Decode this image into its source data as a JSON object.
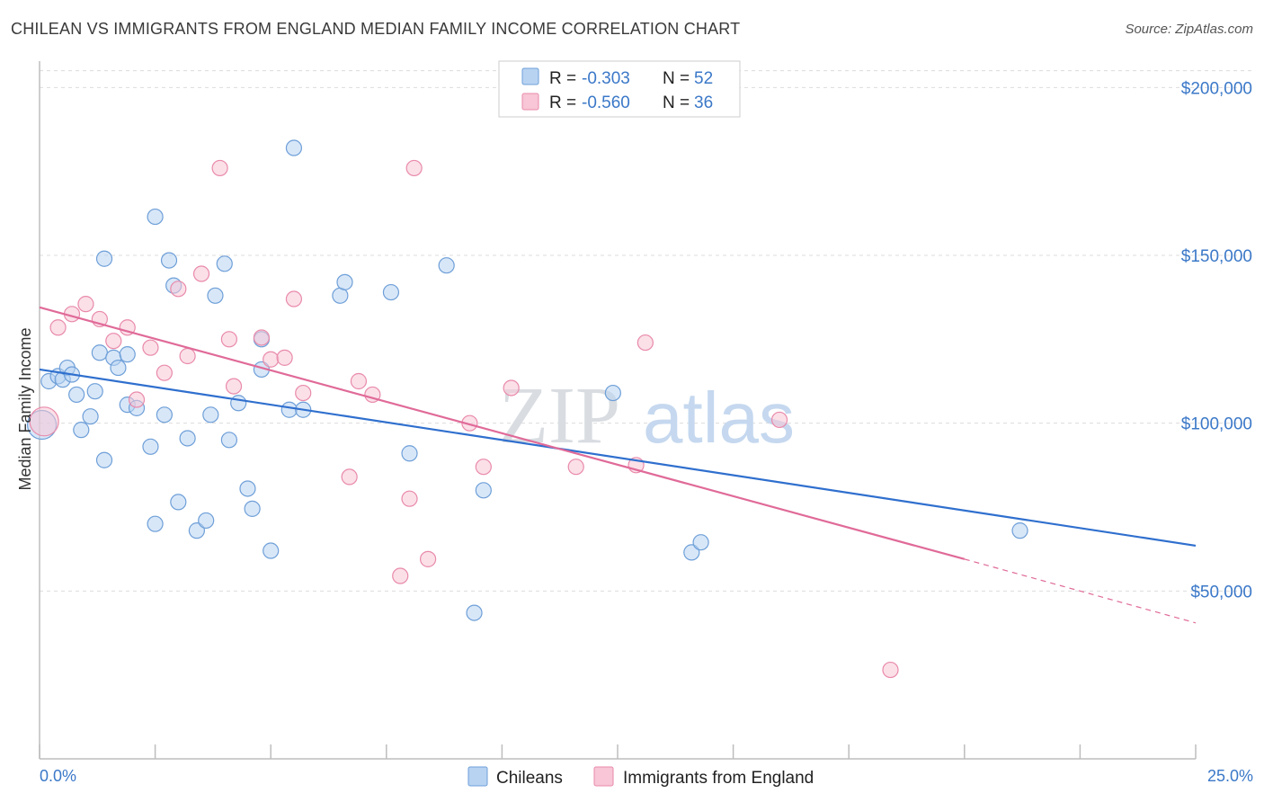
{
  "title": "CHILEAN VS IMMIGRANTS FROM ENGLAND MEDIAN FAMILY INCOME CORRELATION CHART",
  "source": "Source: ZipAtlas.com",
  "watermark": {
    "part1": "ZIP",
    "part2": "atlas"
  },
  "colors": {
    "blue_fill": "#b8d3f2",
    "blue_stroke": "#6e9fd8",
    "blue_line": "#2f6fce",
    "pink_fill": "#f8c6d6",
    "pink_stroke": "#e98aaa",
    "pink_line": "#e06a98",
    "axis_value": "#3b78c8",
    "grid": "#dcdcdc"
  },
  "legend_top": {
    "rows": [
      {
        "r_label": "R = ",
        "r_value": "-0.303",
        "n_label": "N = ",
        "n_value": "52"
      },
      {
        "r_label": "R = ",
        "r_value": "-0.560",
        "n_label": "N = ",
        "n_value": "36"
      }
    ]
  },
  "legend_bottom": [
    "Chileans",
    "Immigrants from England"
  ],
  "chart_data": {
    "type": "scatter",
    "title": "CHILEAN VS IMMIGRANTS FROM ENGLAND MEDIAN FAMILY INCOME CORRELATION CHART",
    "xlabel": "",
    "ylabel": "Median Family Income",
    "xlim": [
      0,
      25
    ],
    "ylim": [
      0,
      210000
    ],
    "x_tick_labels": [
      "0.0%",
      "25.0%"
    ],
    "y_ticks": [
      50000,
      100000,
      150000,
      200000
    ],
    "y_tick_labels": [
      "$50,000",
      "$100,000",
      "$150,000",
      "$200,000"
    ],
    "grid": true,
    "legend_position": "top-center",
    "series": [
      {
        "name": "Chileans",
        "r": -0.303,
        "n": 52,
        "trend": {
          "x": [
            0,
            25
          ],
          "y": [
            116000,
            63500
          ]
        },
        "points": [
          [
            0.2,
            112500
          ],
          [
            0.4,
            114000
          ],
          [
            0.5,
            113000
          ],
          [
            0.6,
            116500
          ],
          [
            0.7,
            114500
          ],
          [
            0.8,
            108500
          ],
          [
            0.9,
            98000
          ],
          [
            1.1,
            102000
          ],
          [
            1.2,
            109500
          ],
          [
            1.3,
            121000
          ],
          [
            1.4,
            89000
          ],
          [
            1.4,
            149000
          ],
          [
            1.6,
            119500
          ],
          [
            1.7,
            116500
          ],
          [
            1.9,
            120500
          ],
          [
            1.9,
            105500
          ],
          [
            2.1,
            104500
          ],
          [
            2.4,
            93000
          ],
          [
            2.5,
            70000
          ],
          [
            2.5,
            161500
          ],
          [
            2.7,
            102500
          ],
          [
            2.8,
            148500
          ],
          [
            2.9,
            141000
          ],
          [
            3.0,
            76500
          ],
          [
            3.2,
            95500
          ],
          [
            3.4,
            68000
          ],
          [
            3.6,
            71000
          ],
          [
            3.7,
            102500
          ],
          [
            3.8,
            138000
          ],
          [
            4.0,
            147500
          ],
          [
            4.1,
            95000
          ],
          [
            4.3,
            106000
          ],
          [
            4.5,
            80500
          ],
          [
            4.6,
            74500
          ],
          [
            4.8,
            125000
          ],
          [
            4.8,
            116000
          ],
          [
            5.0,
            62000
          ],
          [
            5.4,
            104000
          ],
          [
            5.5,
            182000
          ],
          [
            5.7,
            104000
          ],
          [
            6.5,
            138000
          ],
          [
            6.6,
            142000
          ],
          [
            7.6,
            139000
          ],
          [
            8.0,
            91000
          ],
          [
            8.8,
            147000
          ],
          [
            9.4,
            43500
          ],
          [
            9.6,
            80000
          ],
          [
            12.4,
            109000
          ],
          [
            14.1,
            61500
          ],
          [
            14.3,
            64500
          ],
          [
            21.2,
            68000
          ],
          [
            0.05,
            99500
          ]
        ]
      },
      {
        "name": "Immigrants from England",
        "r": -0.56,
        "n": 36,
        "trend": {
          "x": [
            0,
            20
          ],
          "y": [
            134500,
            59500
          ]
        },
        "trend_dashed": {
          "x": [
            20,
            25
          ],
          "y": [
            59500,
            40500
          ]
        },
        "points": [
          [
            0.1,
            100500
          ],
          [
            0.4,
            128500
          ],
          [
            0.7,
            132500
          ],
          [
            1.0,
            135500
          ],
          [
            1.3,
            131000
          ],
          [
            1.6,
            124500
          ],
          [
            1.9,
            128500
          ],
          [
            2.1,
            107000
          ],
          [
            2.4,
            122500
          ],
          [
            2.7,
            115000
          ],
          [
            3.0,
            140000
          ],
          [
            3.2,
            120000
          ],
          [
            3.5,
            144500
          ],
          [
            3.9,
            176000
          ],
          [
            4.1,
            125000
          ],
          [
            4.2,
            111000
          ],
          [
            4.8,
            125500
          ],
          [
            5.0,
            119000
          ],
          [
            5.3,
            119500
          ],
          [
            5.5,
            137000
          ],
          [
            5.7,
            109000
          ],
          [
            6.7,
            84000
          ],
          [
            6.9,
            112500
          ],
          [
            7.2,
            108500
          ],
          [
            7.8,
            54500
          ],
          [
            8.0,
            77500
          ],
          [
            8.1,
            176000
          ],
          [
            8.4,
            59500
          ],
          [
            9.3,
            100000
          ],
          [
            9.6,
            87000
          ],
          [
            10.2,
            110500
          ],
          [
            11.6,
            87000
          ],
          [
            12.9,
            87500
          ],
          [
            13.1,
            124000
          ],
          [
            16.0,
            101000
          ],
          [
            18.4,
            26500
          ]
        ]
      }
    ]
  }
}
